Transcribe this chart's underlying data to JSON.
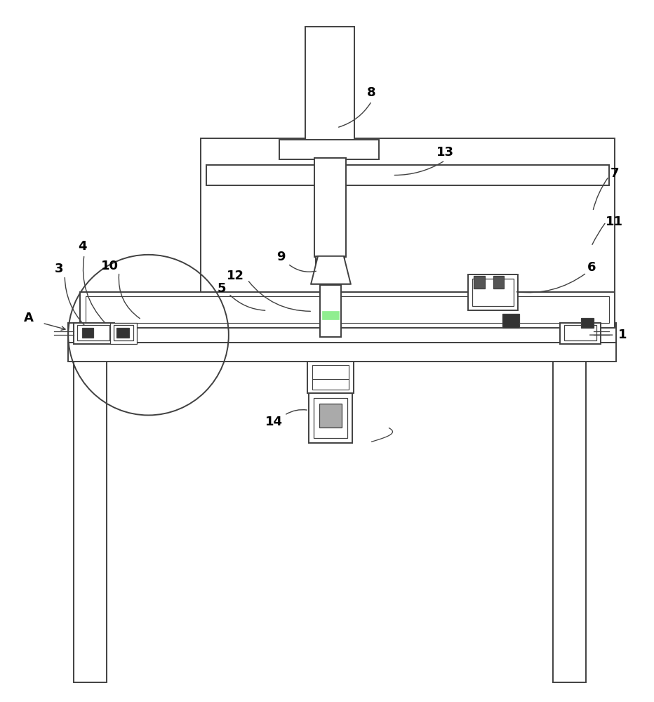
{
  "bg_color": "#ffffff",
  "lc": "#404040",
  "lw": 1.4,
  "fig_width": 9.32,
  "fig_height": 10.0
}
